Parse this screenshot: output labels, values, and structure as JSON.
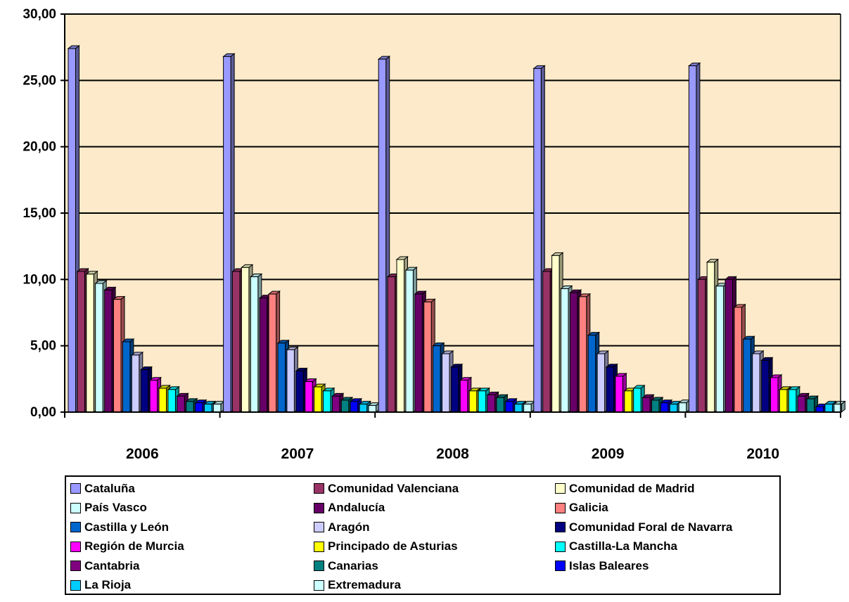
{
  "chart_data": {
    "type": "bar",
    "categories": [
      "2006",
      "2007",
      "2008",
      "2009",
      "2010"
    ],
    "y_ticks": [
      "0,00",
      "5,00",
      "10,00",
      "15,00",
      "20,00",
      "25,00",
      "30,00"
    ],
    "ylim": [
      0,
      30
    ],
    "grid": true,
    "legend_position": "bottom",
    "series": [
      {
        "name": "Cataluña",
        "color": "#9999FF",
        "values": [
          27.4,
          26.8,
          26.6,
          25.9,
          26.1
        ]
      },
      {
        "name": "Comunidad Valenciana",
        "color": "#993366",
        "values": [
          10.6,
          10.6,
          10.2,
          10.6,
          10.0
        ]
      },
      {
        "name": "Comunidad de Madrid",
        "color": "#FFFFCC",
        "values": [
          10.4,
          10.9,
          11.5,
          11.8,
          11.3
        ]
      },
      {
        "name": "País Vasco",
        "color": "#CCFFFF",
        "values": [
          9.7,
          10.2,
          10.7,
          9.3,
          9.5
        ]
      },
      {
        "name": "Andalucía",
        "color": "#660066",
        "values": [
          9.2,
          8.6,
          8.9,
          9.0,
          10.0
        ]
      },
      {
        "name": "Galicia",
        "color": "#FF8080",
        "values": [
          8.5,
          8.9,
          8.3,
          8.7,
          7.9
        ]
      },
      {
        "name": "Castilla y León",
        "color": "#0066CC",
        "values": [
          5.3,
          5.2,
          5.0,
          5.8,
          5.5
        ]
      },
      {
        "name": "Aragón",
        "color": "#CCCCFF",
        "values": [
          4.3,
          4.7,
          4.4,
          4.4,
          4.4
        ]
      },
      {
        "name": "Comunidad Foral de Navarra",
        "color": "#000080",
        "values": [
          3.2,
          3.1,
          3.4,
          3.4,
          3.9
        ]
      },
      {
        "name": "Región de Murcia",
        "color": "#FF00FF",
        "values": [
          2.4,
          2.3,
          2.4,
          2.7,
          2.6
        ]
      },
      {
        "name": "Principado de Asturias",
        "color": "#FFFF00",
        "values": [
          1.8,
          1.9,
          1.6,
          1.6,
          1.7
        ]
      },
      {
        "name": "Castilla-La Mancha",
        "color": "#00FFFF",
        "values": [
          1.7,
          1.6,
          1.6,
          1.8,
          1.7
        ]
      },
      {
        "name": "Cantabria",
        "color": "#800080",
        "values": [
          1.2,
          1.2,
          1.3,
          1.1,
          1.2
        ]
      },
      {
        "name": "Canarias",
        "color": "#008080",
        "values": [
          0.8,
          0.9,
          1.1,
          0.9,
          1.0
        ]
      },
      {
        "name": "Islas Baleares",
        "color": "#0000FF",
        "values": [
          0.7,
          0.8,
          0.8,
          0.7,
          0.4
        ]
      },
      {
        "name": "La Rioja",
        "color": "#00CCFF",
        "values": [
          0.6,
          0.6,
          0.6,
          0.6,
          0.6
        ]
      },
      {
        "name": "Extremadura",
        "color": "#CCFFFF",
        "values": [
          0.6,
          0.5,
          0.6,
          0.7,
          0.6
        ]
      }
    ]
  },
  "style": {
    "plot_background": "#FCEACA",
    "grid_color": "#000000"
  }
}
